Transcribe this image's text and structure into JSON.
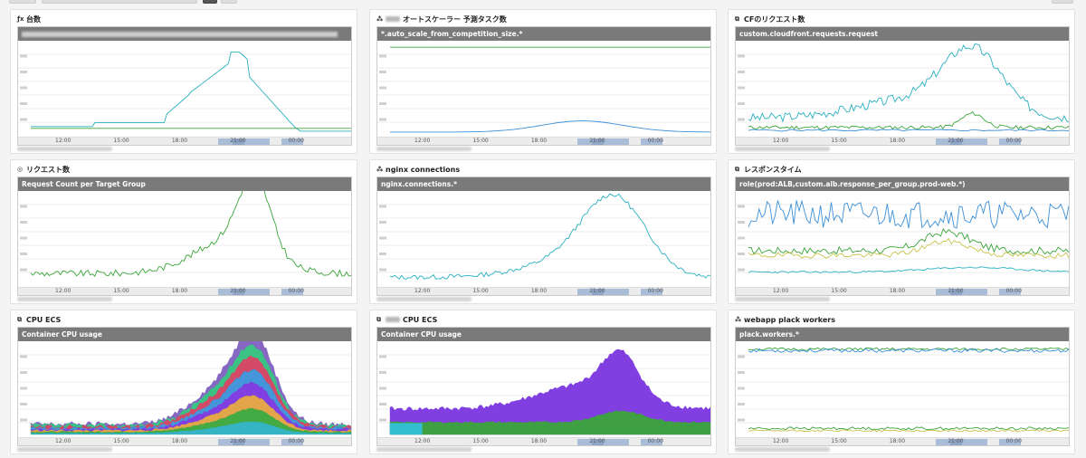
{
  "colors": {
    "teal": "#2bb0c0",
    "green": "#3aa53a",
    "blue": "#3b8fd8",
    "yellow": "#c8c24a",
    "purple": "#7a35e0",
    "cyan": "#33c0d8"
  },
  "time_ticks": [
    "12:00",
    "15:00",
    "18:00",
    "21:00",
    "00:00"
  ],
  "panels": [
    {
      "id": "p1",
      "icon": "function-icon",
      "icon_char": "ƒx",
      "title": "台数",
      "header": "",
      "header_blurred": true
    },
    {
      "id": "p2",
      "icon": "users-icon",
      "icon_char": "⁂",
      "title": "オートスケーラー 予測タスク数",
      "title_prefix_blurred": true,
      "header": "*.auto_scale_from_competition_size.*",
      "header_blurred": false
    },
    {
      "id": "p3",
      "icon": "copy-icon",
      "icon_char": "⧉",
      "title": "CFのリクエスト数",
      "header": "custom.cloudfront.requests.request",
      "header_blurred": false
    },
    {
      "id": "p4",
      "icon": "target-icon",
      "icon_char": "◎",
      "title": "リクエスト数",
      "header": "Request Count per Target Group",
      "header_blurred": false
    },
    {
      "id": "p5",
      "icon": "users-icon",
      "icon_char": "⁂",
      "title": "nginx connections",
      "header": "nginx.connections.*",
      "header_blurred": false
    },
    {
      "id": "p6",
      "icon": "copy-icon",
      "icon_char": "⧉",
      "title": "レスポンスタイム",
      "header": "role(prod:ALB,custom.alb.response_per_group.prod-web.*)",
      "header_blurred": false
    },
    {
      "id": "p7",
      "icon": "copy-icon",
      "icon_char": "⧉",
      "title": "CPU ECS",
      "header": "Container CPU usage",
      "header_blurred": false
    },
    {
      "id": "p8",
      "icon": "copy-icon",
      "icon_char": "⧉",
      "title": "CPU ECS",
      "title_prefix_blurred": true,
      "header": "Container CPU usage",
      "header_blurred": false
    },
    {
      "id": "p9",
      "icon": "users-icon",
      "icon_char": "⁂",
      "title": "webapp plack workers",
      "header": "plack.workers.*",
      "header_blurred": false
    }
  ]
}
